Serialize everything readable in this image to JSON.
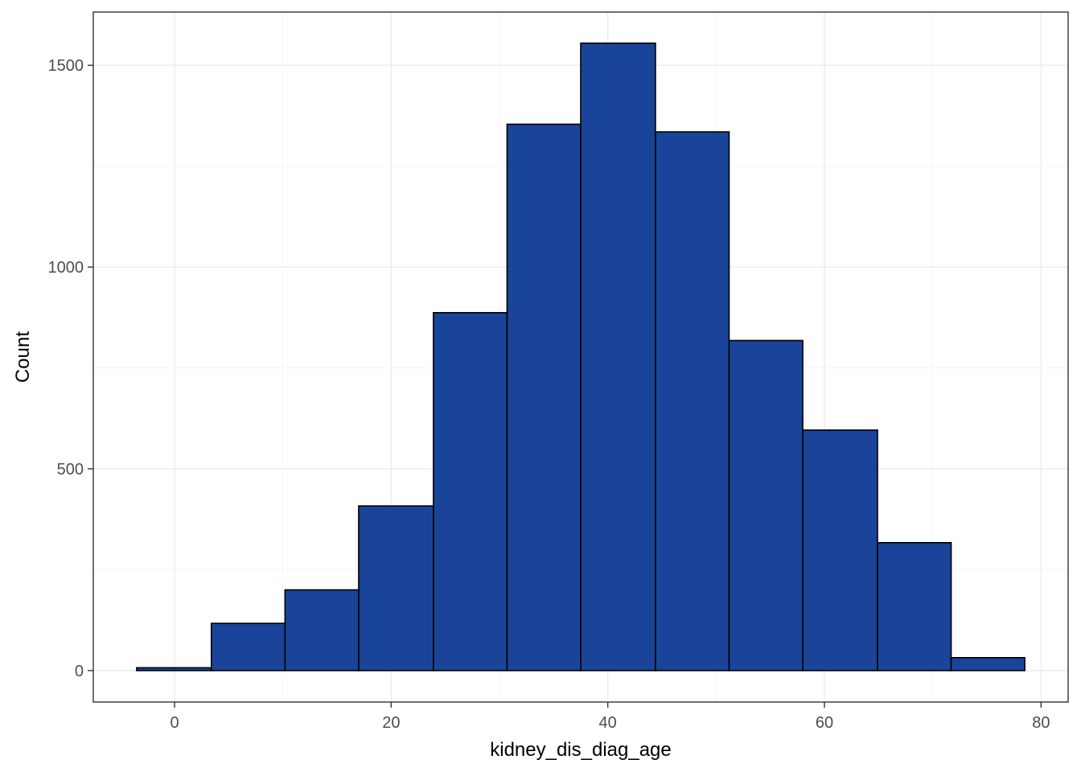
{
  "chart_data": {
    "type": "bar",
    "subtype": "histogram",
    "title": "",
    "xlabel": "kidney_dis_diag_age",
    "ylabel": "Count",
    "bins": [
      {
        "x0": -3.5,
        "x1": 3.4,
        "count": 7
      },
      {
        "x0": 3.4,
        "x1": 10.2,
        "count": 117
      },
      {
        "x0": 10.2,
        "x1": 17.0,
        "count": 200
      },
      {
        "x0": 17.0,
        "x1": 23.9,
        "count": 408
      },
      {
        "x0": 23.9,
        "x1": 30.7,
        "count": 887
      },
      {
        "x0": 30.7,
        "x1": 37.5,
        "count": 1354
      },
      {
        "x0": 37.5,
        "x1": 44.4,
        "count": 1555
      },
      {
        "x0": 44.4,
        "x1": 51.2,
        "count": 1335
      },
      {
        "x0": 51.2,
        "x1": 58.0,
        "count": 818
      },
      {
        "x0": 58.0,
        "x1": 64.9,
        "count": 596
      },
      {
        "x0": 64.9,
        "x1": 71.7,
        "count": 317
      },
      {
        "x0": 71.7,
        "x1": 78.5,
        "count": 32
      }
    ],
    "xlim": [
      -7.5,
      82.5
    ],
    "ylim": [
      -78,
      1632
    ],
    "x_ticks": [
      0,
      20,
      40,
      60,
      80
    ],
    "y_ticks": [
      0,
      500,
      1000,
      1500
    ],
    "x_tick_labels": [
      "0",
      "20",
      "40",
      "60",
      "80"
    ],
    "y_tick_labels": [
      "0",
      "500",
      "1000",
      "1500"
    ],
    "bar_fill": "#1a4499",
    "bar_stroke": "#000000",
    "grid": true,
    "legend": "none",
    "theme": "bw"
  }
}
